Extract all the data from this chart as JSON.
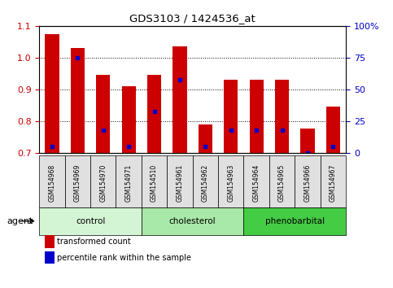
{
  "title": "GDS3103 / 1424536_at",
  "samples": [
    "GSM154968",
    "GSM154969",
    "GSM154970",
    "GSM154971",
    "GSM154510",
    "GSM154961",
    "GSM154962",
    "GSM154963",
    "GSM154964",
    "GSM154965",
    "GSM154966",
    "GSM154967"
  ],
  "bar_heights": [
    1.075,
    1.03,
    0.945,
    0.91,
    0.945,
    1.035,
    0.79,
    0.93,
    0.93,
    0.93,
    0.775,
    0.845
  ],
  "blue_dots": [
    0.72,
    1.0,
    0.77,
    0.72,
    0.83,
    0.93,
    0.72,
    0.77,
    0.77,
    0.77,
    0.7,
    0.72
  ],
  "bar_color": "#cc0000",
  "dot_color": "#0000cc",
  "ylim_left": [
    0.7,
    1.1
  ],
  "ylim_right": [
    0,
    100
  ],
  "yticks_left": [
    0.7,
    0.8,
    0.9,
    1.0,
    1.1
  ],
  "yticks_right": [
    0,
    25,
    50,
    75,
    100
  ],
  "ytick_labels_right": [
    "0",
    "25",
    "50",
    "75",
    "100%"
  ],
  "groups": [
    {
      "label": "control",
      "spans": [
        0,
        3
      ],
      "color": "#d4f5d4"
    },
    {
      "label": "cholesterol",
      "spans": [
        4,
        7
      ],
      "color": "#a8e8a8"
    },
    {
      "label": "phenobarbital",
      "spans": [
        8,
        11
      ],
      "color": "#44cc44"
    }
  ],
  "agent_label": "agent",
  "legend_red": "transformed count",
  "legend_blue": "percentile rank within the sample",
  "bar_width": 0.55,
  "tick_label_color_left": "#cc0000",
  "tick_label_color_right": "#0000cc",
  "bar_bottom": 0.7,
  "fig_width": 4.83,
  "fig_height": 3.54,
  "dpi": 100
}
